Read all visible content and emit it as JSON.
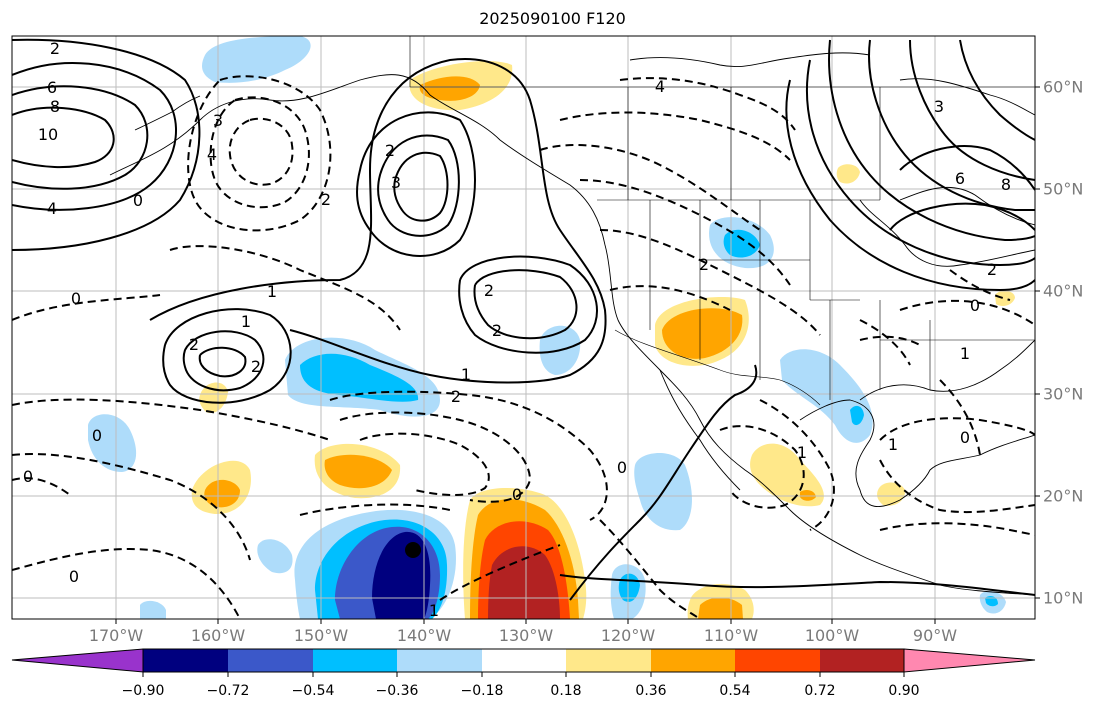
{
  "title": "2025090100 F120",
  "map": {
    "longitude_labels": [
      "170°W",
      "160°W",
      "150°W",
      "140°W",
      "130°W",
      "120°W",
      "110°W",
      "100°W",
      "90°W"
    ],
    "latitude_labels": [
      "60°N",
      "50°N",
      "40°N",
      "30°N",
      "20°N",
      "10°N"
    ],
    "contour_labels": [
      "2",
      "6",
      "8",
      "10",
      "4",
      "0",
      "3",
      "4",
      "2",
      "3",
      "2",
      "1",
      "1",
      "2",
      "2",
      "2",
      "1",
      "2",
      "0",
      "0",
      "0",
      "0",
      "0",
      "1",
      "0",
      "2",
      "3",
      "6",
      "8",
      "2",
      "0",
      "1",
      "0",
      "1",
      "4",
      "1",
      "2"
    ],
    "marker": {
      "shape": "circle",
      "color": "#000000"
    }
  },
  "colorbar": {
    "tick_labels": [
      "−0.90",
      "−0.72",
      "−0.54",
      "−0.36",
      "−0.18",
      "0.18",
      "0.36",
      "0.54",
      "0.72",
      "0.90"
    ],
    "colors": [
      "#9933cc",
      "#00007f",
      "#3b58c9",
      "#00bfff",
      "#aedcfa",
      "#ffffff",
      "#ffe88a",
      "#ffa500",
      "#ff4500",
      "#b22222",
      "#ff88b0"
    ],
    "extend": "both"
  }
}
